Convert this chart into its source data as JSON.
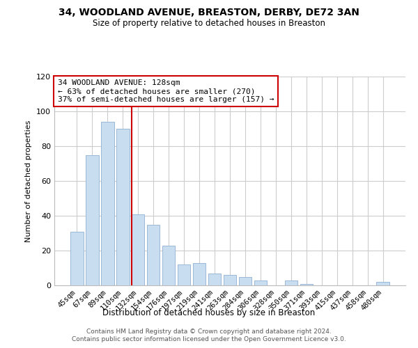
{
  "title": "34, WOODLAND AVENUE, BREASTON, DERBY, DE72 3AN",
  "subtitle": "Size of property relative to detached houses in Breaston",
  "xlabel": "Distribution of detached houses by size in Breaston",
  "ylabel": "Number of detached properties",
  "bar_color": "#c8ddf0",
  "bar_edge_color": "#9ab8d8",
  "background_color": "#ffffff",
  "grid_color": "#cccccc",
  "categories": [
    "45sqm",
    "67sqm",
    "89sqm",
    "110sqm",
    "132sqm",
    "154sqm",
    "176sqm",
    "197sqm",
    "219sqm",
    "241sqm",
    "263sqm",
    "284sqm",
    "306sqm",
    "328sqm",
    "350sqm",
    "371sqm",
    "393sqm",
    "415sqm",
    "437sqm",
    "458sqm",
    "480sqm"
  ],
  "values": [
    31,
    75,
    94,
    90,
    41,
    35,
    23,
    12,
    13,
    7,
    6,
    5,
    3,
    0,
    3,
    1,
    0,
    0,
    0,
    0,
    2
  ],
  "ylim": [
    0,
    120
  ],
  "yticks": [
    0,
    20,
    40,
    60,
    80,
    100,
    120
  ],
  "marker_bar_index": 4,
  "marker_label": "34 WOODLAND AVENUE: 128sqm",
  "annotation_line1": "← 63% of detached houses are smaller (270)",
  "annotation_line2": "37% of semi-detached houses are larger (157) →",
  "marker_color": "#cc0000",
  "footer_line1": "Contains HM Land Registry data © Crown copyright and database right 2024.",
  "footer_line2": "Contains public sector information licensed under the Open Government Licence v3.0."
}
